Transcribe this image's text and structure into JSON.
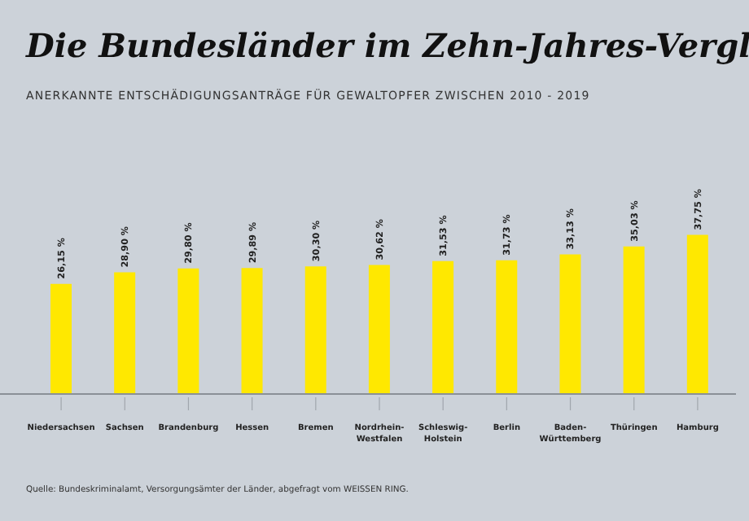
{
  "chart_data": {
    "type": "bar",
    "title": "Die Bundesländer im Zehn-Jahres-Vergl",
    "subtitle": "ANERKANNTE ENTSCHÄDIGUNGSANTRÄGE FÜR GEWALTOPFER ZWISCHEN 2010 - 2019",
    "categories": [
      "Niedersachsen",
      "Sachsen",
      "Brandenburg",
      "Hessen",
      "Bremen",
      "Nordrhein-Westfalen",
      "Schleswig-Holstein",
      "Berlin",
      "Baden-Württemberg",
      "Thüringen",
      "Hamburg"
    ],
    "values": [
      26.15,
      28.9,
      29.8,
      29.89,
      30.3,
      30.62,
      31.53,
      31.73,
      33.13,
      35.03,
      37.75
    ],
    "value_labels": [
      "26,15 %",
      "28,90 %",
      "29,80 %",
      "29,89 %",
      "30,30 %",
      "30,62 %",
      "31,53 %",
      "31,73 %",
      "33,13 %",
      "35,03 %",
      "37,75 %"
    ],
    "color": "#ffe800",
    "grid": false,
    "legend": false,
    "annotations": [
      "Quelle: Bundeskriminalamt, Versorgungsämter der Länder, abgefragt vom WEISSEN RING."
    ]
  }
}
